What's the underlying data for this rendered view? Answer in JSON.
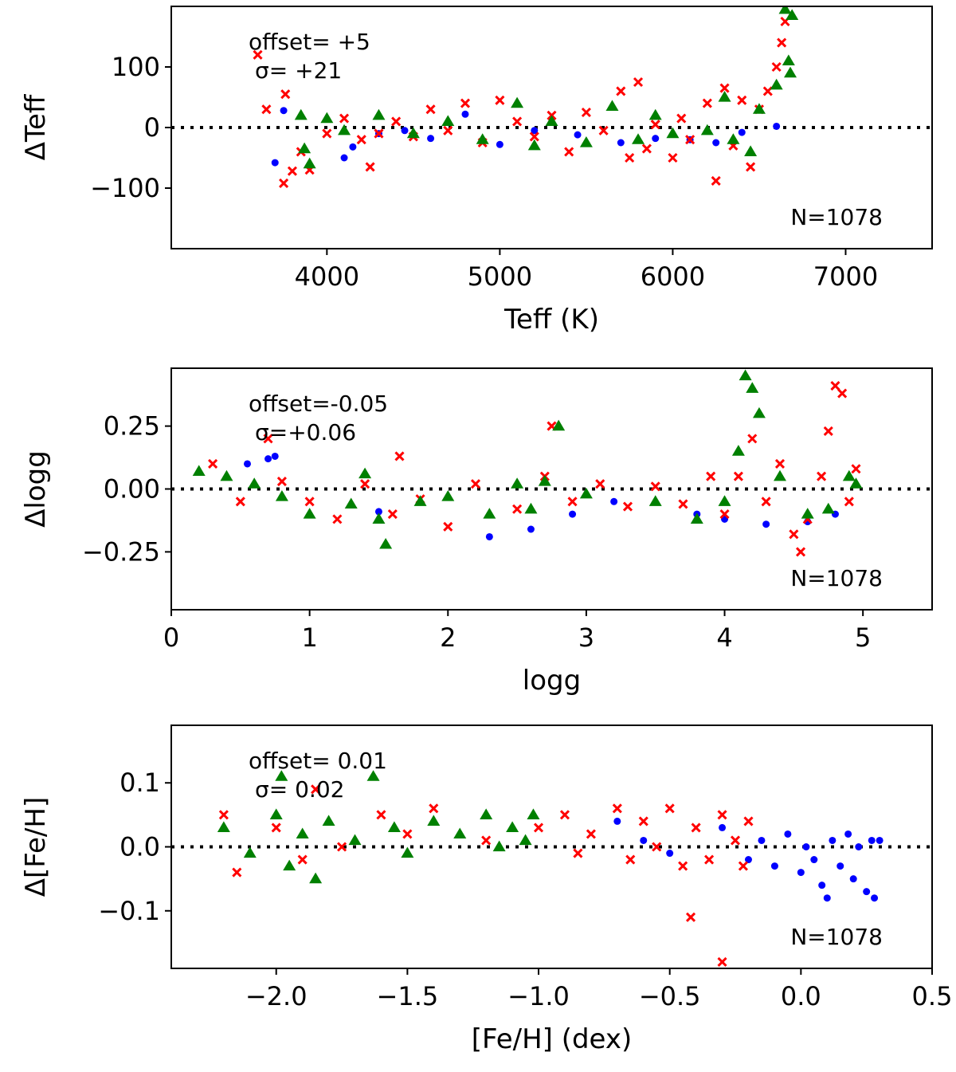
{
  "colors": {
    "blue": "#0000ff",
    "red": "#ff0000",
    "green": "#008000",
    "zero_line": "#000000"
  },
  "chart_data": [
    {
      "type": "scatter",
      "xlabel": "Teff (K)",
      "ylabel": "ΔTeff",
      "xlim": [
        3100,
        7500
      ],
      "ylim": [
        -200,
        200
      ],
      "xticks": [
        4000,
        5000,
        6000,
        7000
      ],
      "yticks": [
        -100,
        0,
        100
      ],
      "xtick_labels": [
        "4000",
        "5000",
        "6000",
        "7000"
      ],
      "ytick_labels": [
        "−100",
        "0",
        "100"
      ],
      "zero_line": true,
      "grid": false,
      "annotations": {
        "offset": "offset=  +5",
        "sigma": "σ= +21",
        "n": "N=1078"
      },
      "series": [
        {
          "marker": "dot",
          "color": "blue",
          "points": [
            [
              3700,
              -58
            ],
            [
              3750,
              28
            ],
            [
              4100,
              -50
            ],
            [
              4150,
              -32
            ],
            [
              4300,
              -10
            ],
            [
              4450,
              -5
            ],
            [
              4600,
              -18
            ],
            [
              4800,
              22
            ],
            [
              5000,
              -28
            ],
            [
              5200,
              -5
            ],
            [
              5450,
              -12
            ],
            [
              5700,
              -25
            ],
            [
              5900,
              -18
            ],
            [
              6100,
              -20
            ],
            [
              6250,
              -25
            ],
            [
              6400,
              -8
            ],
            [
              6600,
              2
            ]
          ]
        },
        {
          "marker": "x",
          "color": "red",
          "points": [
            [
              3600,
              120
            ],
            [
              3650,
              30
            ],
            [
              3750,
              -92
            ],
            [
              3760,
              55
            ],
            [
              3800,
              -72
            ],
            [
              3850,
              -40
            ],
            [
              3900,
              -70
            ],
            [
              4000,
              -10
            ],
            [
              4100,
              15
            ],
            [
              4200,
              -20
            ],
            [
              4250,
              -65
            ],
            [
              4300,
              -10
            ],
            [
              4400,
              10
            ],
            [
              4500,
              -15
            ],
            [
              4600,
              30
            ],
            [
              4700,
              -5
            ],
            [
              4800,
              40
            ],
            [
              4900,
              -25
            ],
            [
              5000,
              45
            ],
            [
              5100,
              10
            ],
            [
              5200,
              -15
            ],
            [
              5300,
              20
            ],
            [
              5400,
              -40
            ],
            [
              5500,
              25
            ],
            [
              5600,
              -5
            ],
            [
              5700,
              60
            ],
            [
              5750,
              -50
            ],
            [
              5800,
              75
            ],
            [
              5850,
              -35
            ],
            [
              5900,
              5
            ],
            [
              6000,
              -50
            ],
            [
              6050,
              15
            ],
            [
              6100,
              -20
            ],
            [
              6200,
              40
            ],
            [
              6250,
              -88
            ],
            [
              6300,
              65
            ],
            [
              6350,
              -30
            ],
            [
              6400,
              45
            ],
            [
              6450,
              -65
            ],
            [
              6500,
              30
            ],
            [
              6550,
              60
            ],
            [
              6600,
              100
            ],
            [
              6630,
              140
            ],
            [
              6650,
              175
            ]
          ]
        },
        {
          "marker": "triangle",
          "color": "green",
          "points": [
            [
              3850,
              20
            ],
            [
              3870,
              -35
            ],
            [
              3900,
              -60
            ],
            [
              4000,
              15
            ],
            [
              4100,
              -5
            ],
            [
              4300,
              20
            ],
            [
              4500,
              -10
            ],
            [
              4700,
              10
            ],
            [
              4900,
              -20
            ],
            [
              5100,
              40
            ],
            [
              5200,
              -30
            ],
            [
              5300,
              10
            ],
            [
              5500,
              -25
            ],
            [
              5650,
              35
            ],
            [
              5800,
              -20
            ],
            [
              5900,
              20
            ],
            [
              6000,
              -10
            ],
            [
              6200,
              -5
            ],
            [
              6300,
              50
            ],
            [
              6350,
              -20
            ],
            [
              6450,
              -40
            ],
            [
              6500,
              30
            ],
            [
              6600,
              70
            ],
            [
              6650,
              195
            ],
            [
              6670,
              110
            ],
            [
              6680,
              90
            ],
            [
              6690,
              185
            ]
          ]
        }
      ]
    },
    {
      "type": "scatter",
      "xlabel": "logg",
      "ylabel": "Δlogg",
      "xlim": [
        0,
        5.5
      ],
      "ylim": [
        -0.48,
        0.48
      ],
      "xticks": [
        0,
        1,
        2,
        3,
        4,
        5
      ],
      "yticks": [
        -0.25,
        0,
        0.25
      ],
      "xtick_labels": [
        "0",
        "1",
        "2",
        "3",
        "4",
        "5"
      ],
      "ytick_labels": [
        "−0.25",
        "0.00",
        "0.25"
      ],
      "zero_line": true,
      "grid": false,
      "annotations": {
        "offset": "offset=-0.05",
        "sigma": "σ=+0.06",
        "n": "N=1078"
      },
      "series": [
        {
          "marker": "dot",
          "color": "blue",
          "points": [
            [
              0.55,
              0.1
            ],
            [
              0.7,
              0.12
            ],
            [
              0.75,
              0.13
            ],
            [
              1.5,
              -0.09
            ],
            [
              2.3,
              -0.19
            ],
            [
              2.6,
              -0.16
            ],
            [
              2.9,
              -0.1
            ],
            [
              3.2,
              -0.05
            ],
            [
              3.8,
              -0.1
            ],
            [
              4.0,
              -0.12
            ],
            [
              4.3,
              -0.14
            ],
            [
              4.6,
              -0.13
            ],
            [
              4.8,
              -0.1
            ]
          ]
        },
        {
          "marker": "x",
          "color": "red",
          "points": [
            [
              0.3,
              0.1
            ],
            [
              0.5,
              -0.05
            ],
            [
              0.7,
              0.2
            ],
            [
              0.8,
              0.03
            ],
            [
              1.0,
              -0.05
            ],
            [
              1.2,
              -0.12
            ],
            [
              1.4,
              0.02
            ],
            [
              1.6,
              -0.1
            ],
            [
              1.65,
              0.13
            ],
            [
              1.8,
              -0.04
            ],
            [
              2.0,
              -0.15
            ],
            [
              2.2,
              0.02
            ],
            [
              2.5,
              -0.08
            ],
            [
              2.7,
              0.05
            ],
            [
              2.75,
              0.25
            ],
            [
              2.9,
              -0.05
            ],
            [
              3.1,
              0.02
            ],
            [
              3.3,
              -0.07
            ],
            [
              3.5,
              0.01
            ],
            [
              3.7,
              -0.06
            ],
            [
              3.9,
              0.05
            ],
            [
              4.0,
              -0.1
            ],
            [
              4.1,
              0.05
            ],
            [
              4.2,
              0.2
            ],
            [
              4.3,
              -0.05
            ],
            [
              4.4,
              0.1
            ],
            [
              4.5,
              -0.18
            ],
            [
              4.55,
              -0.25
            ],
            [
              4.6,
              -0.12
            ],
            [
              4.7,
              0.05
            ],
            [
              4.75,
              0.23
            ],
            [
              4.8,
              0.41
            ],
            [
              4.85,
              0.38
            ],
            [
              4.9,
              -0.05
            ],
            [
              4.95,
              0.08
            ]
          ]
        },
        {
          "marker": "triangle",
          "color": "green",
          "points": [
            [
              0.2,
              0.07
            ],
            [
              0.4,
              0.05
            ],
            [
              0.6,
              0.02
            ],
            [
              0.8,
              -0.03
            ],
            [
              1.0,
              -0.1
            ],
            [
              1.3,
              -0.06
            ],
            [
              1.4,
              0.06
            ],
            [
              1.5,
              -0.12
            ],
            [
              1.55,
              -0.22
            ],
            [
              1.8,
              -0.05
            ],
            [
              2.0,
              -0.03
            ],
            [
              2.3,
              -0.1
            ],
            [
              2.5,
              0.02
            ],
            [
              2.6,
              -0.08
            ],
            [
              2.7,
              0.03
            ],
            [
              2.8,
              0.25
            ],
            [
              3.0,
              -0.02
            ],
            [
              3.5,
              -0.05
            ],
            [
              3.8,
              -0.12
            ],
            [
              4.0,
              -0.05
            ],
            [
              4.1,
              0.15
            ],
            [
              4.15,
              0.45
            ],
            [
              4.2,
              0.4
            ],
            [
              4.25,
              0.3
            ],
            [
              4.4,
              0.05
            ],
            [
              4.6,
              -0.1
            ],
            [
              4.75,
              -0.08
            ],
            [
              4.9,
              0.05
            ],
            [
              4.95,
              0.02
            ]
          ]
        }
      ]
    },
    {
      "type": "scatter",
      "xlabel": "[Fe/H] (dex)",
      "ylabel": "Δ[Fe/H]",
      "xlim": [
        -2.4,
        0.5
      ],
      "ylim": [
        -0.19,
        0.19
      ],
      "xticks": [
        -2.0,
        -1.5,
        -1.0,
        -0.5,
        0.0,
        0.5
      ],
      "yticks": [
        -0.1,
        0,
        0.1
      ],
      "xtick_labels": [
        "−2.0",
        "−1.5",
        "−1.0",
        "−0.5",
        "0.0",
        "0.5"
      ],
      "ytick_labels": [
        "−0.1",
        "0.0",
        "0.1"
      ],
      "zero_line": true,
      "grid": false,
      "annotations": {
        "offset": "offset= 0.01",
        "sigma": "σ= 0.02",
        "n": "N=1078"
      },
      "series": [
        {
          "marker": "dot",
          "color": "blue",
          "points": [
            [
              -0.7,
              0.04
            ],
            [
              -0.6,
              0.01
            ],
            [
              -0.5,
              -0.01
            ],
            [
              -0.3,
              0.03
            ],
            [
              -0.2,
              -0.02
            ],
            [
              -0.15,
              0.01
            ],
            [
              -0.1,
              -0.03
            ],
            [
              -0.05,
              0.02
            ],
            [
              0.0,
              -0.04
            ],
            [
              0.02,
              0.0
            ],
            [
              0.05,
              -0.02
            ],
            [
              0.08,
              -0.06
            ],
            [
              0.1,
              -0.08
            ],
            [
              0.12,
              0.01
            ],
            [
              0.15,
              -0.03
            ],
            [
              0.18,
              0.02
            ],
            [
              0.2,
              -0.05
            ],
            [
              0.22,
              0.0
            ],
            [
              0.25,
              -0.07
            ],
            [
              0.27,
              0.01
            ],
            [
              0.28,
              -0.08
            ],
            [
              0.3,
              0.01
            ]
          ]
        },
        {
          "marker": "x",
          "color": "red",
          "points": [
            [
              -2.2,
              0.05
            ],
            [
              -2.15,
              -0.04
            ],
            [
              -2.0,
              0.03
            ],
            [
              -1.9,
              -0.02
            ],
            [
              -1.85,
              0.09
            ],
            [
              -1.75,
              0.0
            ],
            [
              -1.6,
              0.05
            ],
            [
              -1.5,
              0.02
            ],
            [
              -1.4,
              0.06
            ],
            [
              -1.2,
              0.01
            ],
            [
              -1.0,
              0.03
            ],
            [
              -0.9,
              0.05
            ],
            [
              -0.85,
              -0.01
            ],
            [
              -0.8,
              0.02
            ],
            [
              -0.7,
              0.06
            ],
            [
              -0.65,
              -0.02
            ],
            [
              -0.6,
              0.04
            ],
            [
              -0.55,
              0.0
            ],
            [
              -0.5,
              0.06
            ],
            [
              -0.45,
              -0.03
            ],
            [
              -0.42,
              -0.11
            ],
            [
              -0.4,
              0.03
            ],
            [
              -0.35,
              -0.02
            ],
            [
              -0.3,
              0.05
            ],
            [
              -0.3,
              -0.18
            ],
            [
              -0.25,
              0.01
            ],
            [
              -0.22,
              -0.03
            ],
            [
              -0.2,
              0.04
            ]
          ]
        },
        {
          "marker": "triangle",
          "color": "green",
          "points": [
            [
              -2.2,
              0.03
            ],
            [
              -2.1,
              -0.01
            ],
            [
              -2.0,
              0.05
            ],
            [
              -1.98,
              0.11
            ],
            [
              -1.95,
              -0.03
            ],
            [
              -1.9,
              0.02
            ],
            [
              -1.85,
              -0.05
            ],
            [
              -1.8,
              0.04
            ],
            [
              -1.7,
              0.01
            ],
            [
              -1.63,
              0.11
            ],
            [
              -1.55,
              0.03
            ],
            [
              -1.5,
              -0.01
            ],
            [
              -1.4,
              0.04
            ],
            [
              -1.3,
              0.02
            ],
            [
              -1.2,
              0.05
            ],
            [
              -1.15,
              0.0
            ],
            [
              -1.1,
              0.03
            ],
            [
              -1.05,
              0.01
            ],
            [
              -1.02,
              0.05
            ]
          ]
        }
      ]
    }
  ]
}
